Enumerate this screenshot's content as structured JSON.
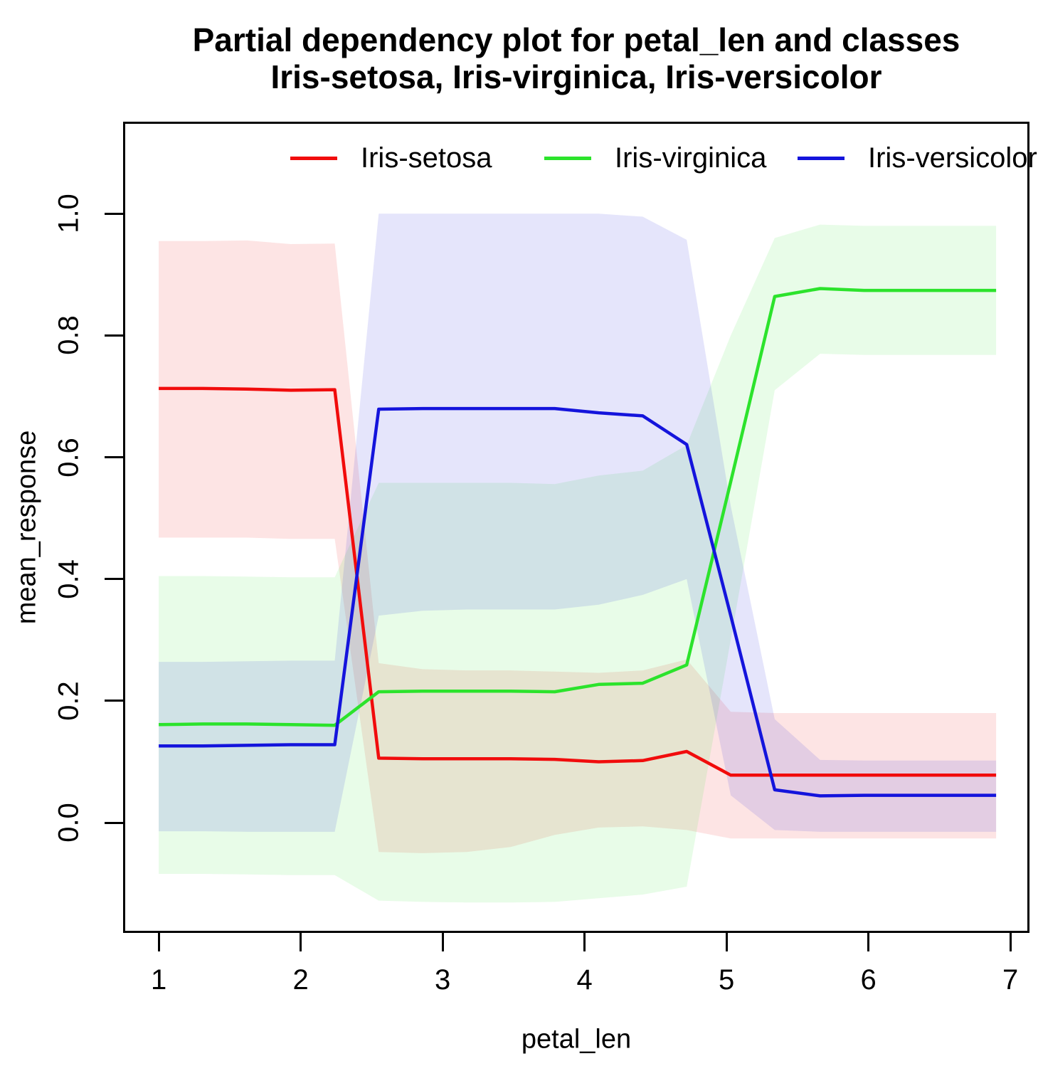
{
  "title": {
    "line1": "Partial dependency plot for petal_len and classes",
    "line2": "Iris-setosa, Iris-virginica, Iris-versicolor"
  },
  "axes": {
    "x_label": "petal_len",
    "y_label": "mean_response",
    "x_tick_labels": [
      "1",
      "2",
      "3",
      "4",
      "5",
      "6",
      "7"
    ],
    "y_tick_labels": [
      "0.0",
      "0.2",
      "0.4",
      "0.6",
      "0.8",
      "1.0"
    ]
  },
  "legend": [
    {
      "label": "Iris-setosa",
      "color": "#f10c0c"
    },
    {
      "label": "Iris-virginica",
      "color": "#2ce32c"
    },
    {
      "label": "Iris-versicolor",
      "color": "#1414dc"
    }
  ],
  "chart_data": {
    "type": "line",
    "title": "Partial dependency plot for petal_len and classes Iris-setosa, Iris-virginica, Iris-versicolor",
    "xlabel": "petal_len",
    "ylabel": "mean_response",
    "xlim": [
      0.749,
      7.135
    ],
    "ylim": [
      -0.181,
      1.151
    ],
    "x_ticks": [
      1,
      2,
      3,
      4,
      5,
      6,
      7
    ],
    "y_ticks": [
      0.0,
      0.2,
      0.4,
      0.6,
      0.8,
      1.0
    ],
    "grid": false,
    "legend_position": "top",
    "band_opacity": 0.11,
    "x": [
      1.0,
      1.31,
      1.62,
      1.93,
      2.24,
      2.55,
      2.86,
      3.17,
      3.48,
      3.79,
      4.1,
      4.41,
      4.72,
      5.03,
      5.34,
      5.66,
      5.97,
      6.28,
      6.59,
      6.9
    ],
    "series": [
      {
        "name": "Iris-setosa",
        "color": "#f10c0c",
        "mean": [
          0.713,
          0.713,
          0.712,
          0.71,
          0.711,
          0.106,
          0.105,
          0.105,
          0.105,
          0.104,
          0.1,
          0.102,
          0.117,
          0.078,
          0.078,
          0.078,
          0.078,
          0.078,
          0.078,
          0.078
        ],
        "upper": [
          0.955,
          0.955,
          0.956,
          0.95,
          0.951,
          0.262,
          0.252,
          0.25,
          0.25,
          0.248,
          0.246,
          0.25,
          0.268,
          0.182,
          0.18,
          0.18,
          0.18,
          0.18,
          0.18,
          0.18
        ],
        "lower": [
          0.468,
          0.468,
          0.468,
          0.466,
          0.466,
          -0.048,
          -0.05,
          -0.048,
          -0.04,
          -0.02,
          -0.008,
          -0.006,
          -0.012,
          -0.026,
          -0.026,
          -0.026,
          -0.026,
          -0.026,
          -0.026,
          -0.026
        ]
      },
      {
        "name": "Iris-virginica",
        "color": "#2ce32c",
        "mean": [
          0.161,
          0.162,
          0.162,
          0.161,
          0.16,
          0.215,
          0.216,
          0.216,
          0.216,
          0.215,
          0.227,
          0.229,
          0.259,
          0.56,
          0.864,
          0.877,
          0.874,
          0.874,
          0.874,
          0.874
        ],
        "upper": [
          0.405,
          0.405,
          0.404,
          0.403,
          0.403,
          0.558,
          0.558,
          0.558,
          0.558,
          0.556,
          0.57,
          0.578,
          0.62,
          0.8,
          0.96,
          0.982,
          0.98,
          0.98,
          0.98,
          0.98
        ],
        "lower": [
          -0.084,
          -0.084,
          -0.085,
          -0.086,
          -0.086,
          -0.128,
          -0.13,
          -0.131,
          -0.131,
          -0.13,
          -0.124,
          -0.118,
          -0.105,
          0.3,
          0.71,
          0.77,
          0.768,
          0.768,
          0.768,
          0.768
        ]
      },
      {
        "name": "Iris-versicolor",
        "color": "#1414dc",
        "mean": [
          0.126,
          0.126,
          0.127,
          0.128,
          0.128,
          0.679,
          0.68,
          0.68,
          0.68,
          0.68,
          0.673,
          0.668,
          0.621,
          0.34,
          0.054,
          0.044,
          0.045,
          0.045,
          0.045,
          0.045
        ],
        "upper": [
          0.264,
          0.264,
          0.265,
          0.266,
          0.266,
          1.0,
          1.0,
          1.0,
          1.0,
          1.0,
          1.0,
          0.995,
          0.957,
          0.52,
          0.17,
          0.103,
          0.102,
          0.102,
          0.102,
          0.102
        ],
        "lower": [
          -0.014,
          -0.014,
          -0.015,
          -0.015,
          -0.015,
          0.34,
          0.348,
          0.35,
          0.35,
          0.35,
          0.358,
          0.374,
          0.4,
          0.045,
          -0.012,
          -0.015,
          -0.015,
          -0.015,
          -0.015,
          -0.015
        ]
      }
    ]
  }
}
